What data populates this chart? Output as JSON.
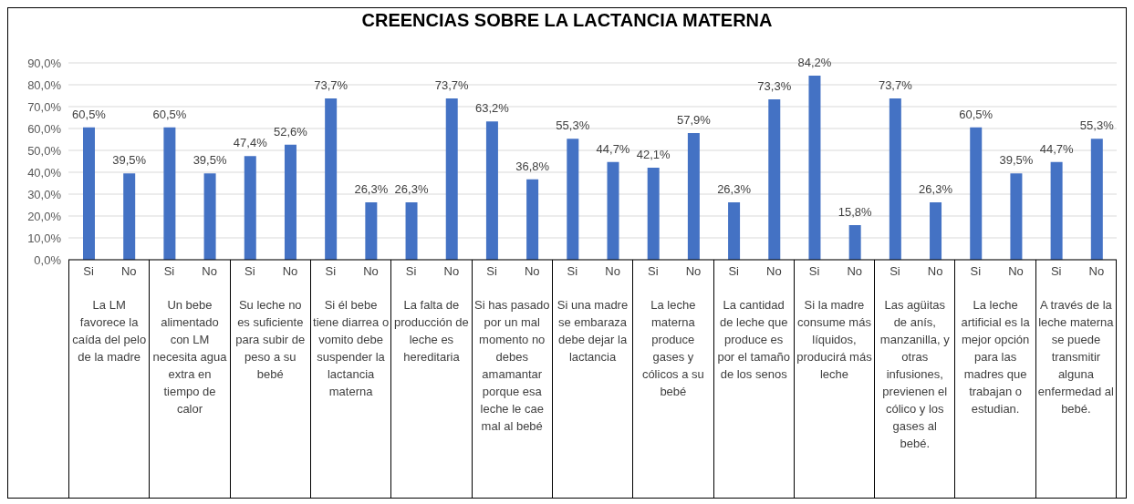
{
  "chart_data": {
    "type": "bar",
    "title": "CREENCIAS SOBRE LA LACTANCIA MATERNA",
    "categories": [
      "Si",
      "No",
      "Si",
      "No",
      "Si",
      "No",
      "Si",
      "No",
      "Si",
      "No",
      "Si",
      "No",
      "Si",
      "No",
      "Si",
      "No",
      "Si",
      "No",
      "Si",
      "No",
      "Si",
      "No",
      "Si",
      "No",
      "Si",
      "No"
    ],
    "values": [
      60.5,
      39.5,
      60.5,
      39.5,
      47.4,
      52.6,
      73.7,
      26.3,
      26.3,
      73.7,
      63.2,
      36.8,
      55.3,
      44.7,
      42.1,
      57.9,
      26.3,
      73.3,
      84.2,
      15.8,
      73.7,
      26.3,
      60.5,
      39.5,
      44.7,
      55.3
    ],
    "value_labels": [
      "60,5%",
      "39,5%",
      "60,5%",
      "39,5%",
      "47,4%",
      "52,6%",
      "73,7%",
      "26,3%",
      "26,3%",
      "73,7%",
      "63,2%",
      "36,8%",
      "55,3%",
      "44,7%",
      "42,1%",
      "57,9%",
      "26,3%",
      "73,3%",
      "84,2%",
      "15,8%",
      "73,7%",
      "26,3%",
      "60,5%",
      "39,5%",
      "44,7%",
      "55,3%"
    ],
    "color": "#4472c4",
    "ylim": [
      0,
      90
    ],
    "yticks": [
      {
        "value": 0,
        "label": "0,0%"
      },
      {
        "value": 10,
        "label": "10,0%"
      },
      {
        "value": 20,
        "label": "20,0%"
      },
      {
        "value": 30,
        "label": "30,0%"
      },
      {
        "value": 40,
        "label": "40,0%"
      },
      {
        "value": 50,
        "label": "50,0%"
      },
      {
        "value": 60,
        "label": "60,0%"
      },
      {
        "value": 70,
        "label": "70,0%"
      },
      {
        "value": 80,
        "label": "80,0%"
      },
      {
        "value": 90,
        "label": "90,0%"
      }
    ],
    "grid": "y",
    "annotations": [
      "La LM favorece la caída del pelo de la madre",
      "Un bebe alimentado con LM necesita agua extra en tiempo de calor",
      "Su leche no es suficiente para subir de peso a su bebé",
      "Si él bebe tiene diarrea o vomito debe suspender la lactancia materna",
      "La falta de producción de leche es hereditaria",
      "Si has pasado por un mal momento no debes amamantar porque esa leche le cae mal al bebé",
      "Si una madre se embaraza debe dejar la lactancia",
      "La leche materna produce gases y cólicos a su bebé",
      "La cantidad de leche que produce es por el tamaño de los senos",
      "Si la madre consume más líquidos, producirá más leche",
      "Las agüitas de anís, manzanilla, y otras infusiones, previenen el cólico y los gases al bebé.",
      "La leche artificial es la mejor opción para las madres que trabajan o estudian.",
      "A través de la leche materna se puede transmitir alguna enfermedad al bebé."
    ]
  }
}
